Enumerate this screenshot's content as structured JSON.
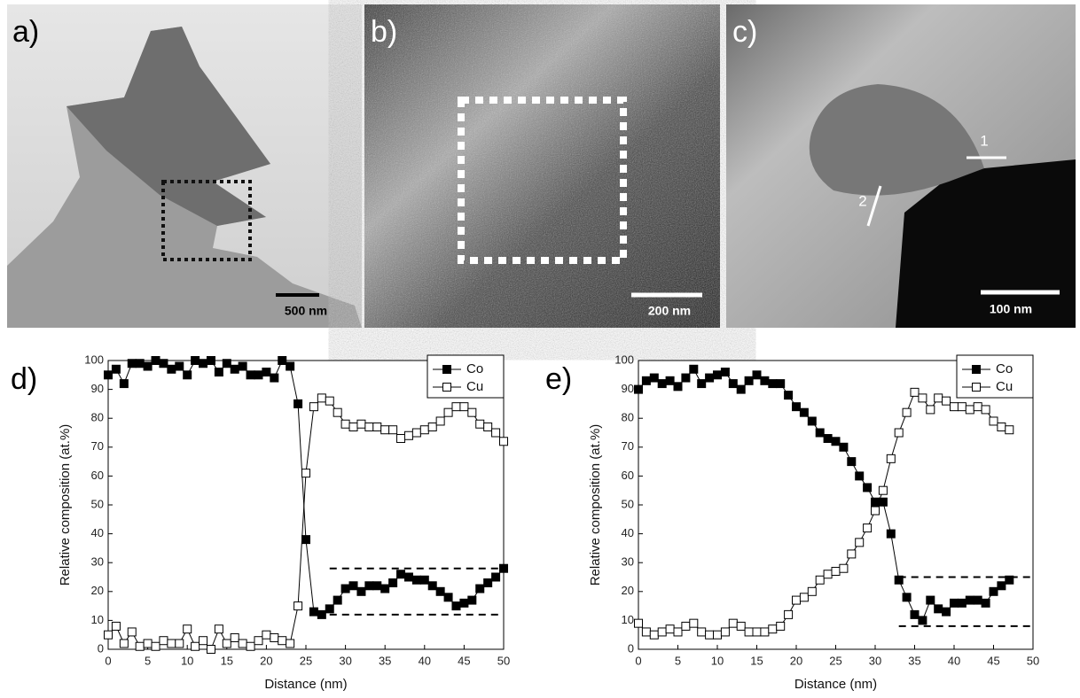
{
  "panels": [
    {
      "label": "a)",
      "scale_bar": "500 nm"
    },
    {
      "label": "b)",
      "scale_bar": "200 nm"
    },
    {
      "label": "c)",
      "scale_bar": "100 nm",
      "markers": [
        "1",
        "2"
      ]
    },
    {
      "label": "d)"
    },
    {
      "label": "e)"
    }
  ],
  "chart_data": [
    {
      "type": "line",
      "x_label": "Distance (nm)",
      "y_label": "Relative composition (at.%)",
      "x": [
        0,
        1,
        2,
        3,
        4,
        5,
        6,
        7,
        8,
        9,
        10,
        11,
        12,
        13,
        14,
        15,
        16,
        17,
        18,
        19,
        20,
        21,
        22,
        23,
        24,
        25,
        26,
        27,
        28,
        29,
        30,
        31,
        32,
        33,
        34,
        35,
        36,
        37,
        38,
        39,
        40,
        41,
        42,
        43,
        44,
        45,
        46,
        47,
        48,
        49,
        50
      ],
      "series": [
        {
          "name": "Co",
          "color": "#000000",
          "filled": true,
          "values": [
            95,
            97,
            92,
            99,
            99,
            98,
            100,
            99,
            97,
            98,
            95,
            100,
            99,
            100,
            96,
            99,
            97,
            98,
            95,
            95,
            96,
            94,
            100,
            98,
            85,
            38,
            13,
            12,
            14,
            17,
            21,
            22,
            20,
            22,
            22,
            21,
            23,
            26,
            25,
            24,
            24,
            22,
            20,
            18,
            15,
            16,
            17,
            21,
            23,
            25,
            28
          ]
        },
        {
          "name": "Cu",
          "color": "#000000",
          "filled": false,
          "values": [
            5,
            8,
            2,
            6,
            1,
            2,
            1,
            3,
            2,
            2,
            7,
            1,
            3,
            0,
            7,
            2,
            4,
            2,
            1,
            3,
            5,
            4,
            3,
            2,
            15,
            61,
            84,
            87,
            86,
            82,
            78,
            77,
            78,
            77,
            77,
            76,
            76,
            73,
            74,
            75,
            76,
            77,
            79,
            82,
            84,
            84,
            82,
            78,
            77,
            75,
            72
          ]
        }
      ],
      "reference_lines": [
        {
          "y": 28,
          "x": [
            28,
            50
          ]
        },
        {
          "y": 12,
          "x": [
            28,
            50
          ]
        }
      ],
      "xlim": [
        0,
        50
      ],
      "xticks": [
        0,
        5,
        10,
        15,
        20,
        25,
        30,
        35,
        40,
        45,
        50
      ],
      "ylim": [
        0,
        100
      ],
      "yticks": [
        0,
        10,
        20,
        30,
        40,
        50,
        60,
        70,
        80,
        90,
        100
      ],
      "legend": "top-right"
    },
    {
      "type": "line",
      "x_label": "Distance (nm)",
      "y_label": "Relative composition (at.%)",
      "x": [
        0,
        1,
        2,
        3,
        4,
        5,
        6,
        7,
        8,
        9,
        10,
        11,
        12,
        13,
        14,
        15,
        16,
        17,
        18,
        19,
        20,
        21,
        22,
        23,
        24,
        25,
        26,
        27,
        28,
        29,
        30,
        31,
        32,
        33,
        34,
        35,
        36,
        37,
        38,
        39,
        40,
        41,
        42,
        43,
        44,
        45,
        46,
        47
      ],
      "series": [
        {
          "name": "Co",
          "color": "#000000",
          "filled": true,
          "values": [
            90,
            93,
            94,
            92,
            93,
            91,
            94,
            97,
            92,
            94,
            95,
            96,
            92,
            90,
            93,
            95,
            93,
            92,
            92,
            88,
            84,
            82,
            79,
            75,
            73,
            72,
            70,
            65,
            60,
            56,
            51,
            51,
            40,
            24,
            18,
            12,
            10,
            17,
            14,
            13,
            16,
            16,
            17,
            17,
            16,
            20,
            22,
            24
          ]
        },
        {
          "name": "Cu",
          "color": "#000000",
          "filled": false,
          "values": [
            9,
            6,
            5,
            6,
            7,
            6,
            8,
            9,
            6,
            5,
            5,
            6,
            9,
            8,
            6,
            6,
            6,
            7,
            8,
            12,
            17,
            18,
            20,
            24,
            26,
            27,
            28,
            33,
            37,
            42,
            48,
            55,
            66,
            75,
            82,
            89,
            87,
            83,
            87,
            86,
            84,
            84,
            83,
            84,
            83,
            79,
            77,
            76
          ]
        }
      ],
      "reference_lines": [
        {
          "y": 25,
          "x": [
            33,
            50
          ]
        },
        {
          "y": 8,
          "x": [
            33,
            50
          ]
        }
      ],
      "xlim": [
        0,
        50
      ],
      "xticks": [
        0,
        5,
        10,
        15,
        20,
        25,
        30,
        35,
        40,
        45,
        50
      ],
      "ylim": [
        0,
        100
      ],
      "yticks": [
        0,
        10,
        20,
        30,
        40,
        50,
        60,
        70,
        80,
        90,
        100
      ],
      "legend": "top-right"
    }
  ]
}
